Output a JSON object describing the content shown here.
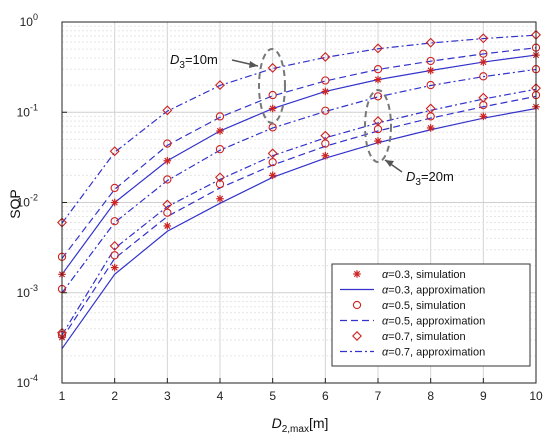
{
  "chart_data": {
    "type": "line",
    "title": "",
    "xlabel": "D",
    "xlabel_sub": "2,max",
    "xlabel_unit": "[m]",
    "ylabel": "SOP",
    "x": [
      1,
      2,
      3,
      4,
      5,
      6,
      7,
      8,
      9,
      10
    ],
    "x_tick_labels": [
      "1",
      "2",
      "3",
      "4",
      "5",
      "6",
      "7",
      "8",
      "9",
      "10"
    ],
    "xlim": [
      1,
      10
    ],
    "y_scale": "log",
    "ylim": [
      0.0001,
      1
    ],
    "y_tick_labels": [
      {
        "base": "10",
        "exp": "-4",
        "value": 0.0001
      },
      {
        "base": "10",
        "exp": "-3",
        "value": 0.001
      },
      {
        "base": "10",
        "exp": "-2",
        "value": 0.01
      },
      {
        "base": "10",
        "exp": "-1",
        "value": 0.1
      },
      {
        "base": "10",
        "exp": "0",
        "value": 1
      }
    ],
    "grid": true,
    "legend_position": "bottom-right",
    "series_color": "#3333cc",
    "marker_color": "#cc2222",
    "series": [
      {
        "name": "α=0.3, simulation",
        "name_symbol": "α",
        "name_rest": "=0.3, simulation",
        "kind": "simulation",
        "marker": "asterisk",
        "values": [
          0.00032,
          0.0019,
          0.0055,
          0.011,
          0.02,
          0.033,
          0.048,
          0.067,
          0.09,
          0.115
        ]
      },
      {
        "name": "α=0.3, approximation",
        "name_symbol": "α",
        "name_rest": "=0.3, approximation",
        "kind": "approximation",
        "linestyle": "solid",
        "values": [
          0.00024,
          0.0016,
          0.0048,
          0.0098,
          0.019,
          0.031,
          0.046,
          0.064,
          0.086,
          0.11
        ]
      },
      {
        "name": "α=0.5, simulation",
        "name_symbol": "α",
        "name_rest": "=0.5, simulation",
        "kind": "simulation",
        "marker": "circle",
        "values": [
          0.00034,
          0.0026,
          0.0077,
          0.016,
          0.028,
          0.045,
          0.065,
          0.09,
          0.12,
          0.155
        ]
      },
      {
        "name": "α=0.5, approximation",
        "name_symbol": "α",
        "name_rest": "=0.5, approximation",
        "kind": "approximation",
        "linestyle": "dashed",
        "values": [
          0.00031,
          0.0024,
          0.007,
          0.0145,
          0.026,
          0.042,
          0.062,
          0.086,
          0.115,
          0.15
        ]
      },
      {
        "name": "α=0.7, simulation",
        "name_symbol": "α",
        "name_rest": "=0.7, simulation",
        "kind": "simulation",
        "marker": "diamond",
        "values": [
          0.00036,
          0.0033,
          0.0095,
          0.019,
          0.035,
          0.055,
          0.08,
          0.11,
          0.145,
          0.185
        ]
      },
      {
        "name": "α=0.7, approximation",
        "name_symbol": "α",
        "name_rest": "=0.7, approximation",
        "kind": "approximation",
        "linestyle": "dashdot",
        "values": [
          0.00034,
          0.0031,
          0.009,
          0.018,
          0.033,
          0.052,
          0.076,
          0.105,
          0.14,
          0.18
        ]
      }
    ],
    "upper_group": {
      "series": [
        {
          "marker": "asterisk",
          "values": [
            0.0016,
            0.01,
            0.029,
            0.062,
            0.11,
            0.17,
            0.23,
            0.29,
            0.36,
            0.43
          ]
        },
        {
          "linestyle": "solid",
          "values": [
            0.0016,
            0.01,
            0.029,
            0.062,
            0.11,
            0.17,
            0.23,
            0.29,
            0.36,
            0.43
          ]
        },
        {
          "marker": "circle",
          "values": [
            0.0025,
            0.0145,
            0.045,
            0.09,
            0.155,
            0.225,
            0.3,
            0.37,
            0.445,
            0.52
          ]
        },
        {
          "linestyle": "dashed",
          "values": [
            0.0024,
            0.014,
            0.043,
            0.088,
            0.152,
            0.222,
            0.298,
            0.368,
            0.443,
            0.518
          ]
        },
        {
          "marker": "diamond",
          "values": [
            0.006,
            0.037,
            0.105,
            0.2,
            0.31,
            0.41,
            0.51,
            0.59,
            0.66,
            0.72
          ]
        },
        {
          "linestyle": "dashdot",
          "values": [
            0.0059,
            0.036,
            0.103,
            0.198,
            0.305,
            0.405,
            0.505,
            0.585,
            0.655,
            0.715
          ]
        }
      ]
    },
    "lower_group_extra": {
      "series": [
        {
          "marker": "circle",
          "values": [
            0.0011,
            0.0062,
            0.018,
            0.039,
            0.068,
            0.104,
            0.15,
            0.2,
            0.25,
            0.3
          ]
        },
        {
          "linestyle": "dashdot",
          "values": [
            0.001,
            0.006,
            0.0175,
            0.038,
            0.067,
            0.102,
            0.148,
            0.198,
            0.248,
            0.298
          ]
        }
      ]
    },
    "annotations": [
      {
        "label_main": "D",
        "label_sub": "3",
        "label_rest": "=10m",
        "ellipse_center": [
          5,
          0.18
        ]
      },
      {
        "label_main": "D",
        "label_sub": "3",
        "label_rest": "=20m",
        "ellipse_center": [
          7,
          0.05
        ]
      }
    ]
  }
}
